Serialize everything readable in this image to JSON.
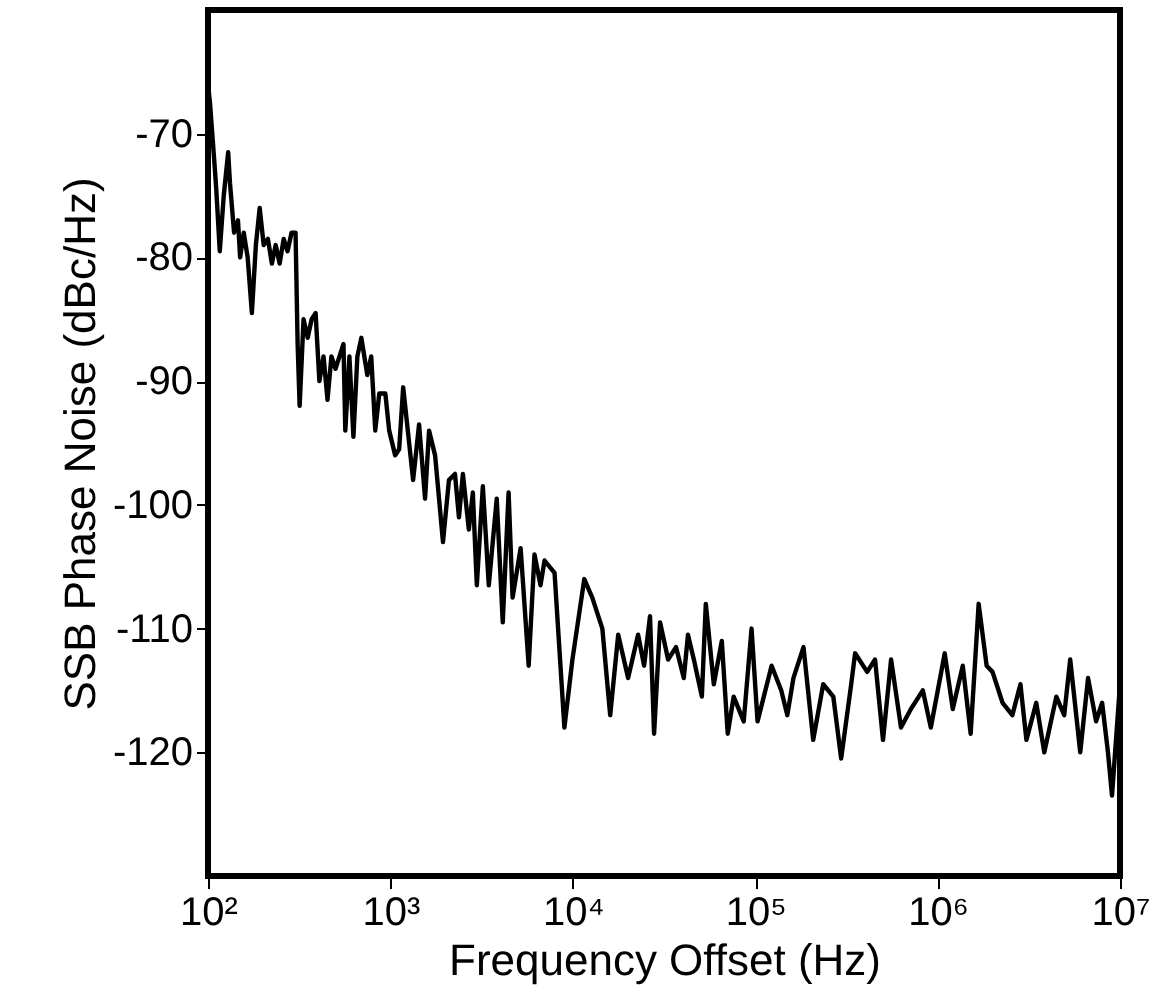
{
  "chart_data": {
    "type": "line",
    "xlabel": "Frequency Offset (Hz)",
    "ylabel": "SSB Phase Noise (dBc/Hz)",
    "log": "x",
    "grid": false,
    "marker": "none",
    "line_style": "solid",
    "xlim": [
      100,
      10000000
    ],
    "ylim": [
      -130,
      -60
    ],
    "xticks": [
      {
        "value": 100,
        "label": "10²"
      },
      {
        "value": 1000,
        "label": "10³"
      },
      {
        "value": 10000,
        "label": "10⁴"
      },
      {
        "value": 100000,
        "label": "10⁵"
      },
      {
        "value": 1000000,
        "label": "10⁶"
      },
      {
        "value": 10000000,
        "label": "10⁷"
      }
    ],
    "yticks": [
      -120,
      -110,
      -100,
      -90,
      -80,
      -70
    ],
    "series": [
      {
        "color": "#000000",
        "x": [
          100,
          102.5,
          108,
          111,
          116,
          122,
          129,
          132,
          139,
          146,
          150,
          157,
          165,
          174,
          183,
          192,
          202,
          213,
          224,
          235,
          247,
          260,
          273,
          287,
          302,
          310,
          318,
          334,
          352,
          370,
          389,
          408,
          430,
          452,
          475,
          500,
          526,
          553,
          566,
          596,
          627,
          659,
          693,
          747,
          785,
          826,
          869,
          938,
          985,
          1062,
          1117,
          1175,
          1332,
          1436,
          1549,
          1629,
          1758,
          1942,
          2094,
          2259,
          2376,
          2497,
          2692,
          2831,
          2977,
          3212,
          3463,
          3828,
          4130,
          4446,
          4677,
          5176,
          5728,
          6166,
          6653,
          6998,
          7943,
          8995,
          9953,
          11560,
          12790,
          14520,
          16030,
          17740,
          20100,
          22800,
          24600,
          26500,
          27900,
          30100,
          33300,
          36800,
          40600,
          42800,
          46100,
          51000,
          53600,
          59300,
          65600,
          70700,
          76200,
          86500,
          95500,
          103000,
          123000,
          139000,
          150000,
          162000,
          184000,
          208000,
          236000,
          268000,
          296000,
          336000,
          353000,
          411000,
          454000,
          502000,
          556000,
          630000,
          714000,
          830000,
          918000,
          1094000,
          1211000,
          1374000,
          1518000,
          1679000,
          1857000,
          2000000,
          2270000,
          2570000,
          2845000,
          3069000,
          3475000,
          3846000,
          4477000,
          4943000,
          5333000,
          6053000,
          6683000,
          7396000,
          7980000,
          8590000,
          9040000,
          10000000
        ],
        "values": [
          -66,
          -67.5,
          -72,
          -74.5,
          -79.5,
          -75,
          -71.5,
          -74,
          -78,
          -77,
          -80,
          -78,
          -80,
          -84.5,
          -79,
          -76,
          -79,
          -78.5,
          -80.5,
          -79,
          -80.5,
          -78.5,
          -79.5,
          -78,
          -78,
          -87,
          -92,
          -85,
          -86.5,
          -85,
          -84.5,
          -90,
          -88,
          -91.5,
          -88,
          -89,
          -88,
          -87,
          -94,
          -88,
          -94.5,
          -88,
          -86.5,
          -89.5,
          -88,
          -94,
          -91,
          -91,
          -94,
          -96,
          -95.5,
          -90.5,
          -98,
          -93.5,
          -99.5,
          -94,
          -96,
          -103,
          -98,
          -97.5,
          -101,
          -97.5,
          -102,
          -99,
          -106.5,
          -98.5,
          -106.5,
          -99.5,
          -109.5,
          -99,
          -107.5,
          -103.5,
          -113,
          -104,
          -106.5,
          -104.5,
          -105.5,
          -118,
          -112.5,
          -106,
          -107.5,
          -110,
          -117,
          -110.5,
          -114,
          -110.5,
          -113,
          -109,
          -118.5,
          -109.5,
          -112.5,
          -111.5,
          -114,
          -110.5,
          -112.5,
          -115.5,
          -108,
          -114.5,
          -111,
          -118.5,
          -115.5,
          -117.5,
          -110,
          -117.5,
          -113,
          -115,
          -117,
          -114,
          -111.5,
          -119,
          -114.5,
          -115.5,
          -120.5,
          -114.5,
          -112,
          -113.5,
          -112.5,
          -119,
          -112.5,
          -118,
          -116.5,
          -115,
          -118,
          -112,
          -116.5,
          -113,
          -118.5,
          -108,
          -113,
          -113.5,
          -116,
          -117,
          -114.5,
          -119,
          -116,
          -120,
          -115.5,
          -117,
          -112.5,
          -120,
          -114,
          -117.5,
          -116,
          -120,
          -123.5,
          -114.5
        ]
      }
    ]
  }
}
